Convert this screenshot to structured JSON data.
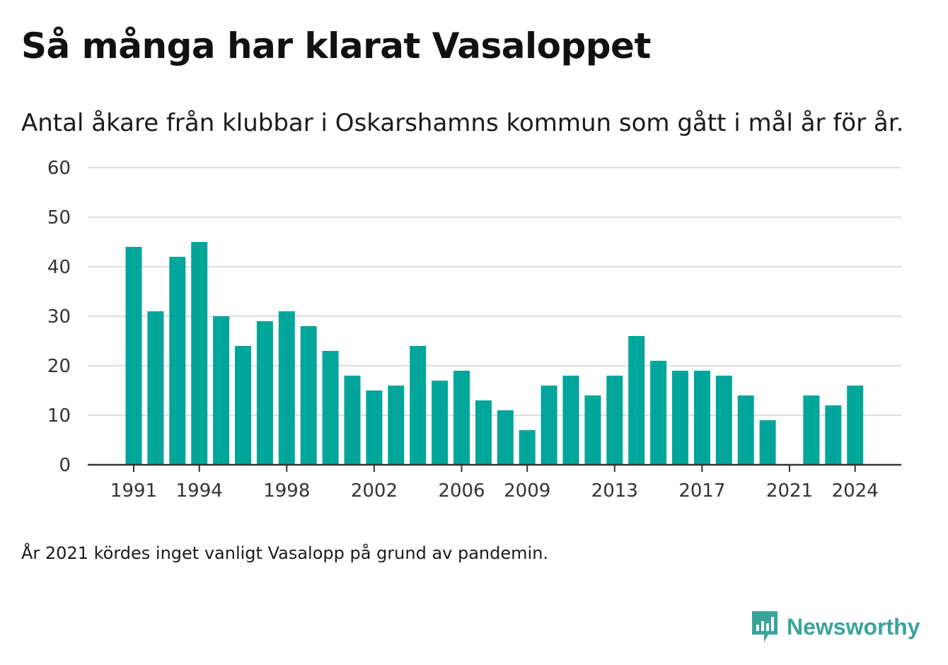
{
  "title": "Så många har klarat Vasaloppet",
  "subtitle": "Antal åkare från klubbar i Oskarshamns kommun som gått i mål år för år.",
  "note": "År 2021 kördes inget vanligt Vasalopp på grund av pandemin.",
  "brand": {
    "name": "Newsworthy",
    "color": "#3aa39a"
  },
  "chart_data": {
    "type": "bar",
    "categories": [
      "1991",
      "1992",
      "1993",
      "1994",
      "1995",
      "1996",
      "1997",
      "1998",
      "1999",
      "2000",
      "2001",
      "2002",
      "2003",
      "2004",
      "2005",
      "2006",
      "2007",
      "2008",
      "2009",
      "2010",
      "2011",
      "2012",
      "2013",
      "2014",
      "2015",
      "2016",
      "2017",
      "2018",
      "2019",
      "2020",
      "2021",
      "2022",
      "2023",
      "2024"
    ],
    "values": [
      44,
      31,
      42,
      45,
      30,
      24,
      29,
      31,
      28,
      23,
      18,
      15,
      16,
      24,
      17,
      19,
      13,
      11,
      7,
      16,
      18,
      14,
      18,
      26,
      21,
      19,
      19,
      18,
      14,
      9,
      null,
      14,
      12,
      16
    ],
    "x_tick_labels": [
      "1991",
      "1994",
      "1998",
      "2002",
      "2006",
      "2009",
      "2013",
      "2017",
      "2021",
      "2024"
    ],
    "y_tick_labels": [
      "0",
      "10",
      "20",
      "30",
      "40",
      "50",
      "60"
    ],
    "ylim": [
      0,
      60
    ],
    "grid": true,
    "legend": "none",
    "bar_color": "#00a69a"
  }
}
